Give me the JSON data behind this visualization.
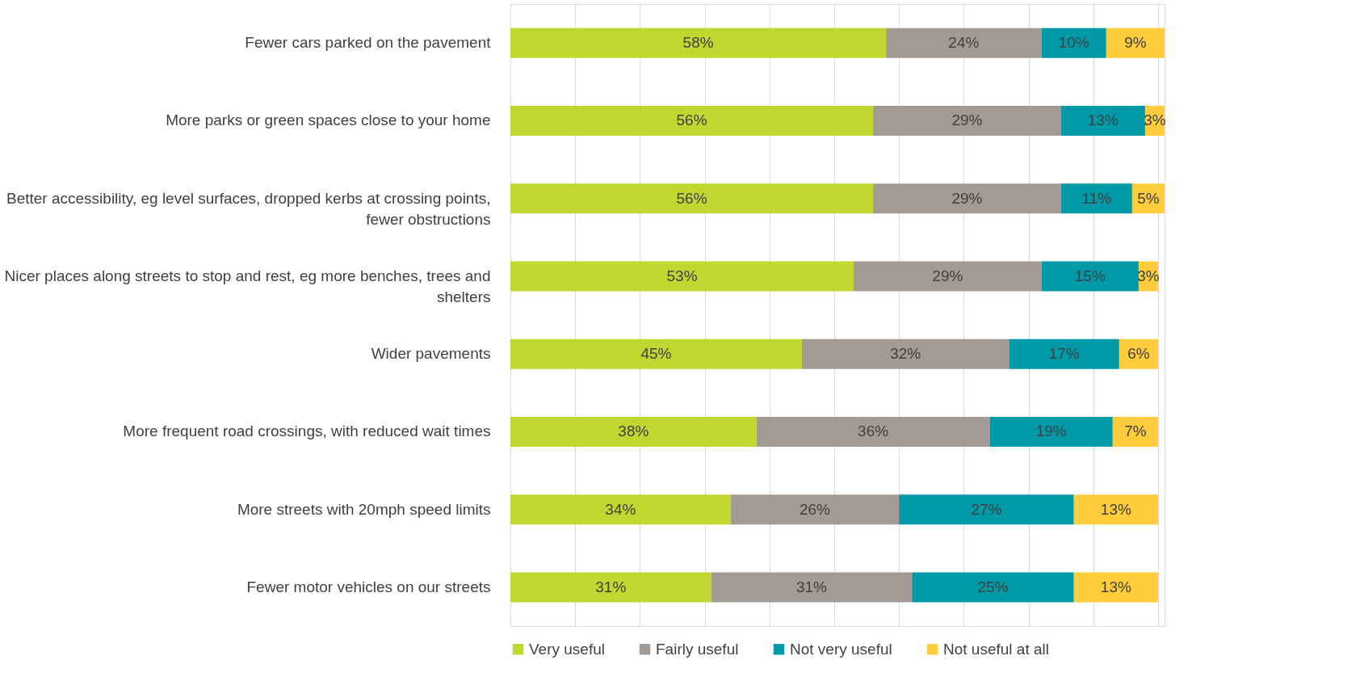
{
  "chart_data": {
    "type": "bar",
    "orientation": "horizontal",
    "stacked": true,
    "categories": [
      "Fewer cars parked on the pavement",
      "More parks or green spaces close to your home",
      "Better accessibility, eg level surfaces, dropped kerbs at crossing points, fewer obstructions",
      "Nicer places along streets to stop and rest, eg more benches, trees and shelters",
      "Wider pavements",
      "More frequent road crossings, with reduced wait times",
      "More streets with 20mph speed limits",
      "Fewer motor vehicles on our streets"
    ],
    "series": [
      {
        "name": "Very useful",
        "color": "#c0d72f",
        "values": [
          58,
          56,
          56,
          53,
          45,
          38,
          34,
          31
        ],
        "value_labels": [
          "58%",
          "56%",
          "56%",
          "53%",
          "45%",
          "38%",
          "34%",
          "31%"
        ]
      },
      {
        "name": "Fairly useful",
        "color": "#a39b93",
        "values": [
          24,
          29,
          29,
          29,
          32,
          36,
          26,
          31
        ],
        "value_labels": [
          "24%",
          "29%",
          "29%",
          "29%",
          "32%",
          "36%",
          "26%",
          "31%"
        ]
      },
      {
        "name": "Not very useful",
        "color": "#0099a8",
        "values": [
          10,
          13,
          11,
          15,
          17,
          19,
          27,
          25
        ],
        "value_labels": [
          "10%",
          "13%",
          "11%",
          "15%",
          "17%",
          "19%",
          "27%",
          "25%"
        ]
      },
      {
        "name": "Not useful at all",
        "color": "#ffcd3c",
        "values": [
          9,
          3,
          5,
          3,
          6,
          7,
          13,
          13
        ],
        "value_labels": [
          "9%",
          "3%",
          "5%",
          "3%",
          "6%",
          "7%",
          "13%",
          "13%"
        ]
      }
    ],
    "xlim": [
      0,
      101
    ],
    "xticks": [
      {
        "value": 0,
        "label": null
      },
      {
        "value": 10,
        "label": null
      },
      {
        "value": 20,
        "label": null
      },
      {
        "value": 30,
        "label": null
      },
      {
        "value": 40,
        "label": null
      },
      {
        "value": 50,
        "label": null
      },
      {
        "value": 60,
        "label": null
      },
      {
        "value": 70,
        "label": null
      },
      {
        "value": 80,
        "label": null
      },
      {
        "value": 90,
        "label": null
      },
      {
        "value": 100,
        "label": null
      }
    ],
    "grid": "x",
    "legend": "bottom",
    "tick_labels": "y"
  }
}
